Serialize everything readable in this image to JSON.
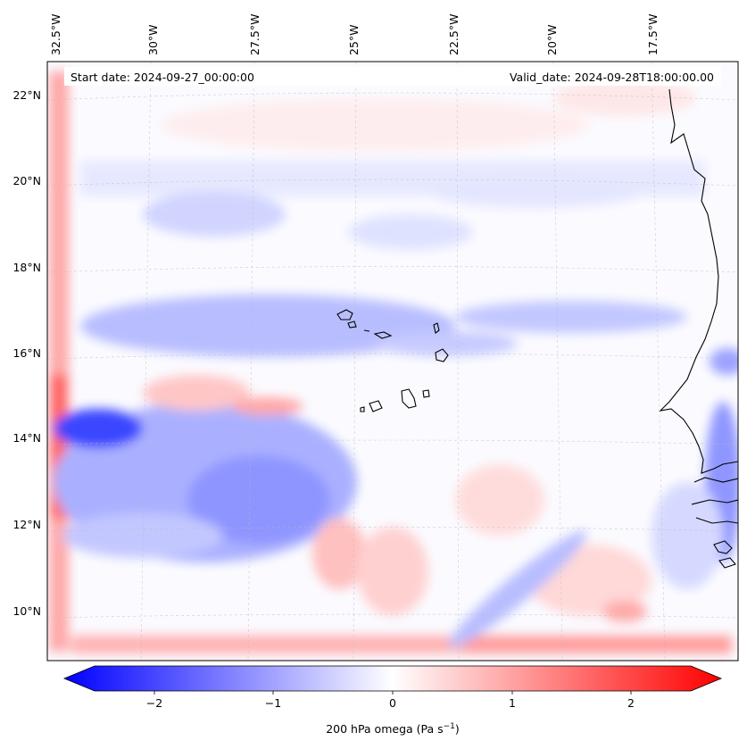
{
  "header": {
    "start_date": "Start date: 2024-09-27_00:00:00",
    "valid_date": "Valid_date: 2024-09-28T18:00:00.00"
  },
  "map": {
    "lon_labels": [
      "32.5°W",
      "30°W",
      "27.5°W",
      "25°W",
      "22.5°W",
      "20°W",
      "17.5°W"
    ],
    "lat_labels": [
      "22°N",
      "20°N",
      "18°N",
      "16°N",
      "14°N",
      "12°N",
      "10°N"
    ],
    "gridlines": "dashed"
  },
  "colorbar": {
    "label_prefix": "200 hPa omega (Pa s",
    "label_sup": "−1",
    "label_suffix": ")",
    "ticks": [
      "−2",
      "−1",
      "0",
      "1",
      "2"
    ],
    "range": [
      -2.7,
      2.7
    ],
    "colormap": "bwr",
    "extend": "both",
    "color_low": "#0000ff",
    "color_mid": "#ffffff",
    "color_high": "#ff0000"
  }
}
